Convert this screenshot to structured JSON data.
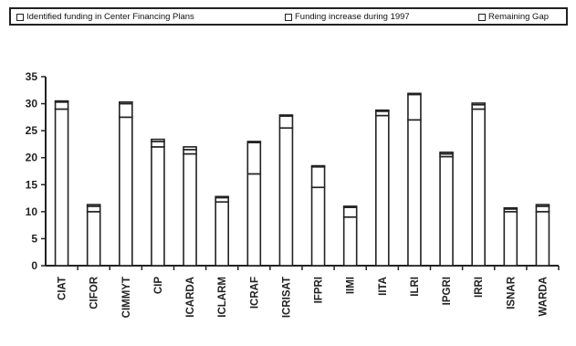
{
  "chart_data": {
    "type": "bar",
    "stacked": true,
    "categories": [
      "CIAT",
      "CIFOR",
      "CIMMYT",
      "CIP",
      "ICARDA",
      "ICLARM",
      "ICRAF",
      "ICRISAT",
      "IFPRI",
      "IIMI",
      "IITA",
      "ILRI",
      "IPGRI",
      "IRRI",
      "ISNAR",
      "WARDA"
    ],
    "series": [
      {
        "name": "Identified funding in Center Financing Plans",
        "values": [
          29.0,
          10.0,
          27.5,
          22.0,
          20.7,
          11.8,
          17.0,
          25.5,
          14.5,
          9.0,
          27.8,
          27.0,
          20.2,
          29.0,
          10.0,
          10.0
        ]
      },
      {
        "name": "Funding increase during 1997",
        "values": [
          1.3,
          1.0,
          2.5,
          1.0,
          0.8,
          0.8,
          5.8,
          2.2,
          3.8,
          1.8,
          0.8,
          4.7,
          0.5,
          0.8,
          0.5,
          1.0
        ]
      },
      {
        "name": "Remaining Gap",
        "values": [
          0.2,
          0.3,
          0.3,
          0.4,
          0.5,
          0.2,
          0.2,
          0.2,
          0.2,
          0.2,
          0.2,
          0.2,
          0.3,
          0.3,
          0.2,
          0.3
        ]
      }
    ],
    "yticks": [
      "0",
      "5",
      "10",
      "15",
      "20",
      "25",
      "30",
      "35"
    ],
    "ylim": [
      0,
      35
    ],
    "legend_position": "top",
    "grid": false
  },
  "colors": {
    "bar_fill": "#ffffff",
    "bar_stroke": "#222222",
    "axis": "#222222"
  }
}
